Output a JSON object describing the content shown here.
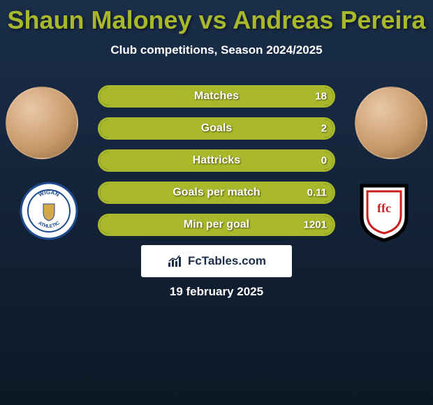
{
  "title_color": "#a9b82b",
  "title": "Shaun Maloney vs Andreas Pereira",
  "subtitle": "Club competitions, Season 2024/2025",
  "bar": {
    "border_color": "#a9b82b",
    "fill_color": "#a9b82b",
    "track_bg": "rgba(0,0,0,0)"
  },
  "rows": [
    {
      "label": "Matches",
      "left": "",
      "right": "18",
      "left_pct": 0,
      "right_pct": 100
    },
    {
      "label": "Goals",
      "left": "",
      "right": "2",
      "left_pct": 0,
      "right_pct": 100
    },
    {
      "label": "Hattricks",
      "left": "",
      "right": "0",
      "left_pct": 0,
      "right_pct": 100
    },
    {
      "label": "Goals per match",
      "left": "",
      "right": "0.11",
      "left_pct": 0,
      "right_pct": 100
    },
    {
      "label": "Min per goal",
      "left": "",
      "right": "1201",
      "left_pct": 0,
      "right_pct": 100
    }
  ],
  "player1": {
    "name": "Shaun Maloney"
  },
  "player2": {
    "name": "Andreas Pereira"
  },
  "club1": {
    "name": "WIGAN ATHLETIC",
    "bg": "#ffffff",
    "ring": "#1e4b8f",
    "text_color": "#1e4b8f"
  },
  "club2": {
    "name": "FFC",
    "bg": "#ffffff",
    "ring": "#000000",
    "accent": "#cc1f1f"
  },
  "brand": "FcTables.com",
  "date": "19 february 2025"
}
